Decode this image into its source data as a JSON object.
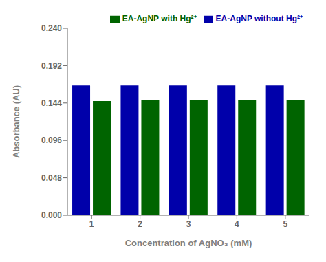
{
  "chart_data": {
    "type": "bar",
    "categories": [
      "1",
      "2",
      "3",
      "4",
      "5"
    ],
    "series": [
      {
        "name": "EA-AgNP without Hg²⁺",
        "color": "#0000AA",
        "values": [
          0.1665,
          0.1665,
          0.1665,
          0.1665,
          0.1665
        ]
      },
      {
        "name": "EA-AgNP with Hg²⁺",
        "color": "#006400",
        "values": [
          0.1465,
          0.1475,
          0.1475,
          0.1475,
          0.1475
        ]
      }
    ],
    "xlabel": "Concentration of AgNO₃ (mM)",
    "ylabel": "Absorbance (AU)",
    "ylim": [
      0,
      0.24
    ],
    "yticks": [
      {
        "value": 0,
        "label": "0.000"
      },
      0.048,
      0.096,
      0.144,
      0.192,
      {
        "value": 0.24,
        "label": "0.240"
      }
    ],
    "grid": false,
    "legend": "upper right"
  }
}
